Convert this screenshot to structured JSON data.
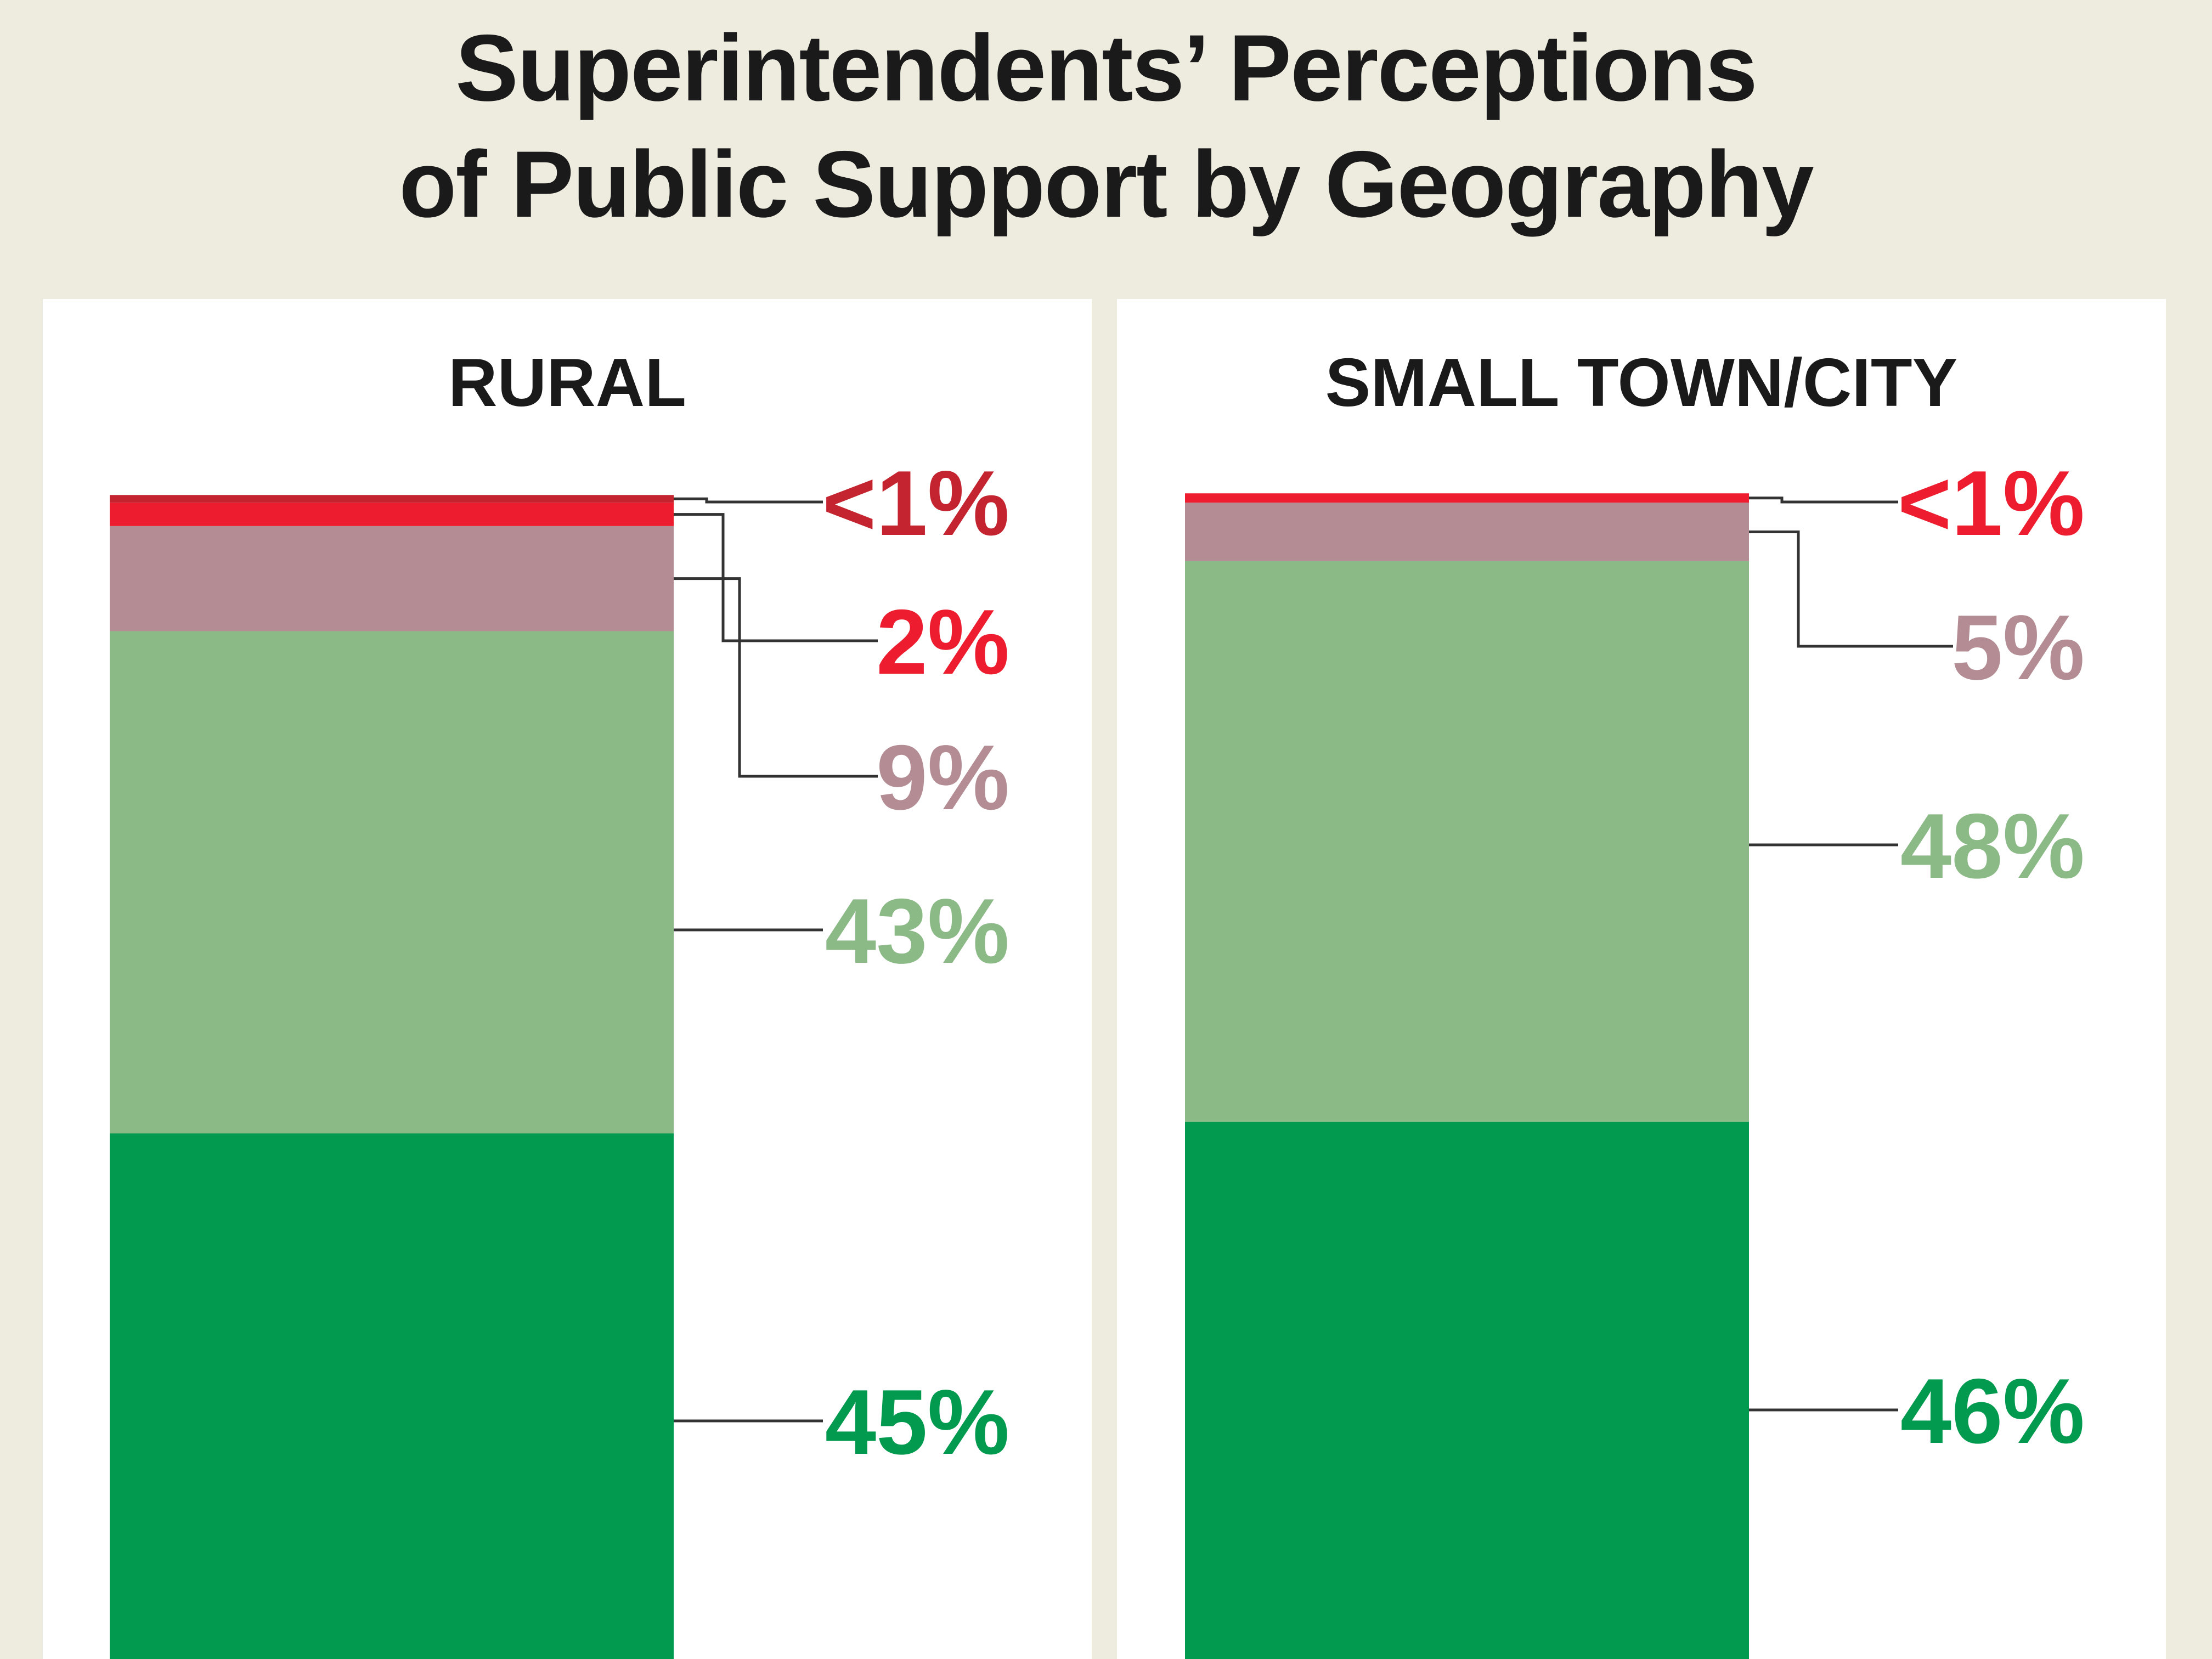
{
  "title": {
    "line1": "Superintendents’ Perceptions",
    "line2": "of Public Support by Geography"
  },
  "colors": {
    "background": "#eeebdf",
    "panel": "#ffffff",
    "dark_green": "#019a4e",
    "light_green": "#8bba87",
    "mauve": "#b38c94",
    "red": "#ed1c2e",
    "dark_red": "#c3242f",
    "leader_line": "#333333"
  },
  "chart_data": [
    {
      "type": "bar",
      "stacked": true,
      "title": "RURAL",
      "segments": [
        {
          "label": "45%",
          "value": 45,
          "color": "#019a4e",
          "text_color": "#019a4e"
        },
        {
          "label": "43%",
          "value": 43,
          "color": "#8bba87",
          "text_color": "#8bba87"
        },
        {
          "label": "9%",
          "value": 9,
          "color": "#b38c94",
          "text_color": "#b38c94"
        },
        {
          "label": "2%",
          "value": 2,
          "color": "#ed1c2e",
          "text_color": "#ed1c2e"
        },
        {
          "label": "<1%",
          "value": 0.5,
          "color": "#c3242f",
          "text_color": "#c3242f"
        }
      ]
    },
    {
      "type": "bar",
      "stacked": true,
      "title": "SMALL TOWN/CITY",
      "segments": [
        {
          "label": "46%",
          "value": 46,
          "color": "#019a4e",
          "text_color": "#019a4e"
        },
        {
          "label": "48%",
          "value": 48,
          "color": "#8bba87",
          "text_color": "#8bba87"
        },
        {
          "label": "5%",
          "value": 5,
          "color": "#b38c94",
          "text_color": "#b38c94"
        },
        {
          "label": "<1%",
          "value": 0.8,
          "color": "#ed1c2e",
          "text_color": "#ed1c2e"
        }
      ]
    }
  ]
}
